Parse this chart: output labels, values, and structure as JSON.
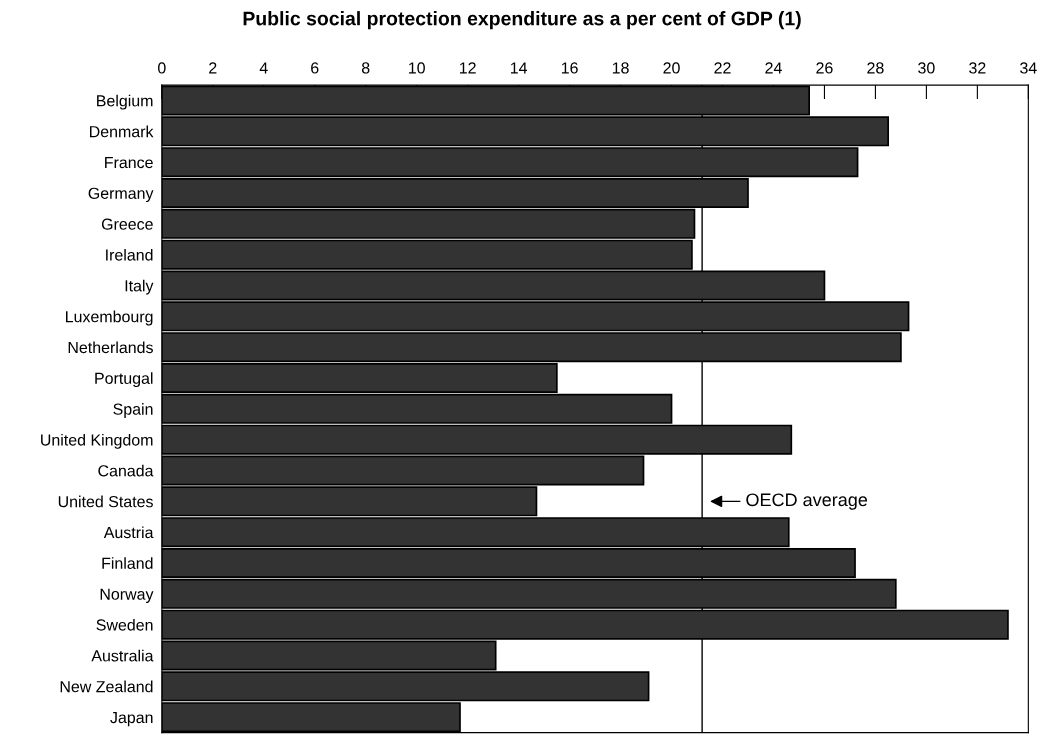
{
  "chart_data": {
    "type": "bar",
    "orientation": "horizontal",
    "title": "Public social protection expenditure as a per cent of GDP (1)",
    "categories": [
      "Belgium",
      "Denmark",
      "France",
      "Germany",
      "Greece",
      "Ireland",
      "Italy",
      "Luxembourg",
      "Netherlands",
      "Portugal",
      "Spain",
      "United Kingdom",
      "Canada",
      "United States",
      "Austria",
      "Finland",
      "Norway",
      "Sweden",
      "Australia",
      "New Zealand",
      "Japan"
    ],
    "values": [
      25.4,
      28.5,
      27.3,
      23.0,
      20.9,
      20.8,
      26.0,
      29.3,
      29.0,
      15.5,
      20.0,
      24.7,
      18.9,
      14.7,
      24.6,
      27.2,
      28.8,
      33.2,
      13.1,
      19.1,
      11.7
    ],
    "color": "#333333",
    "xlim": [
      0,
      34
    ],
    "xticks": [
      0,
      2,
      4,
      6,
      8,
      10,
      12,
      14,
      16,
      18,
      20,
      22,
      24,
      26,
      28,
      30,
      32,
      34
    ],
    "ref_lines": [
      {
        "axis": "x",
        "value": 21.2,
        "color": "#000000"
      }
    ],
    "annotations": [
      {
        "text": "OECD average",
        "x": 21.2,
        "y": "United States"
      }
    ],
    "grid": false,
    "legend": false
  }
}
